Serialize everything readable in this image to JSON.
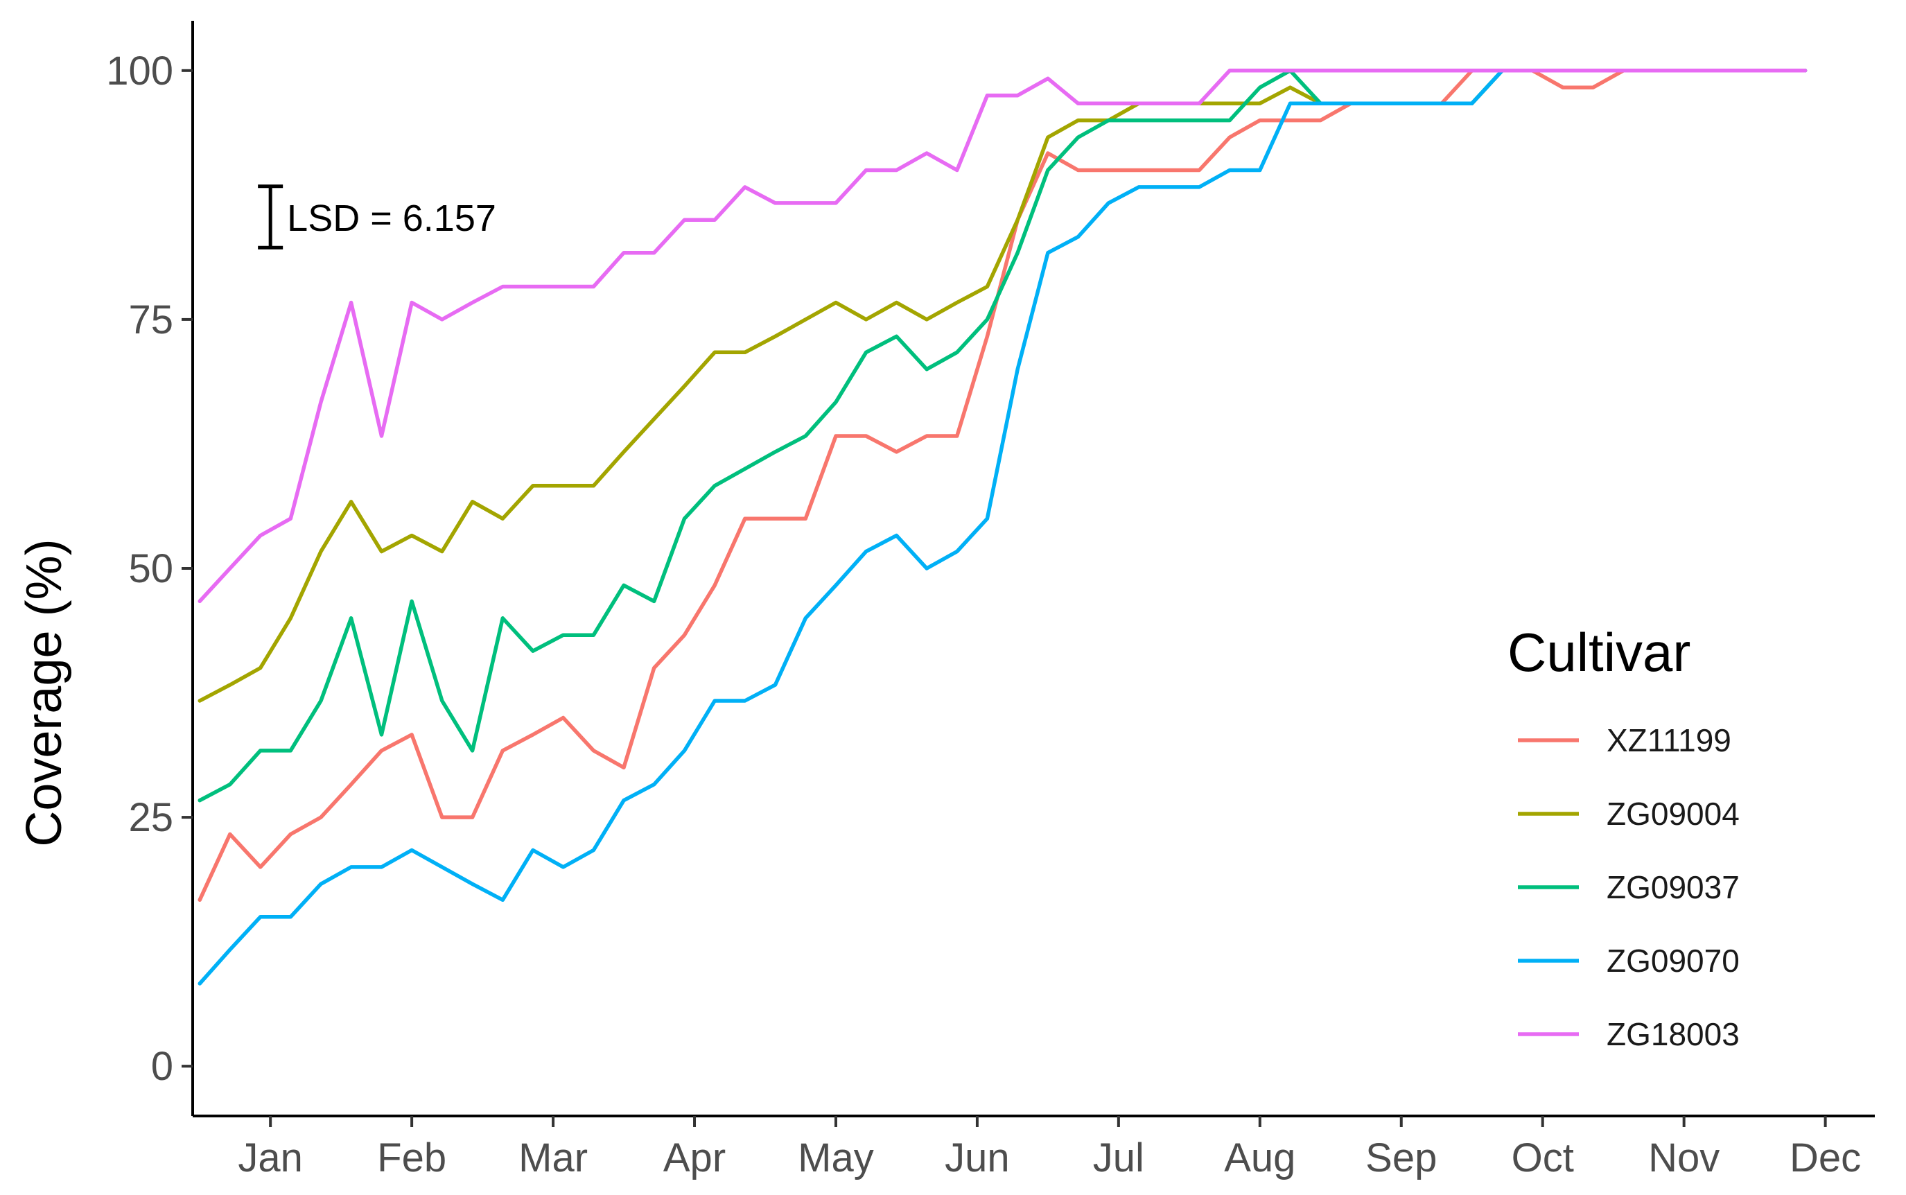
{
  "chart_data": {
    "type": "line",
    "ylabel": "Coverage (%)",
    "xlabel": "",
    "ylim": [
      -5,
      105
    ],
    "xlim": [
      0.45,
      12.35
    ],
    "yticks": [
      0,
      25,
      50,
      75,
      100
    ],
    "x_tick_labels": [
      "Jan",
      "Feb",
      "Mar",
      "Apr",
      "May",
      "Jun",
      "Jul",
      "Aug",
      "Sep",
      "Oct",
      "Nov",
      "Dec"
    ],
    "grid": false,
    "legend": {
      "title": "Cultivar",
      "position": "right"
    },
    "annotation": {
      "text": "LSD = 6.157",
      "x": 1.0,
      "y": 85.3,
      "half_range": 3.08
    },
    "x": [
      0.5,
      0.714,
      0.929,
      1.143,
      1.357,
      1.571,
      1.786,
      2.0,
      2.214,
      2.429,
      2.643,
      2.857,
      3.071,
      3.286,
      3.5,
      3.714,
      3.929,
      4.143,
      4.357,
      4.571,
      4.786,
      5.0,
      5.214,
      5.429,
      5.643,
      5.857,
      6.071,
      6.286,
      6.5,
      6.714,
      6.929,
      7.143,
      7.357,
      7.571,
      7.786,
      8.0,
      8.214,
      8.429,
      8.643,
      8.857,
      9.071,
      9.286,
      9.5,
      9.714,
      9.929,
      10.143,
      10.357,
      10.571,
      10.786,
      11.0,
      11.214,
      11.429,
      11.643,
      11.857
    ],
    "series": [
      {
        "name": "XZ11199",
        "color": "#F8766D",
        "values": [
          16.7,
          23.3,
          20.0,
          23.3,
          25.0,
          28.3,
          31.7,
          33.3,
          25.0,
          25.0,
          31.7,
          33.3,
          35.0,
          31.7,
          30.0,
          40.0,
          43.3,
          48.3,
          55.0,
          55.0,
          55.0,
          63.3,
          63.3,
          61.7,
          63.3,
          63.3,
          73.3,
          85.0,
          91.7,
          90.0,
          90.0,
          90.0,
          90.0,
          90.0,
          93.3,
          95.0,
          95.0,
          95.0,
          96.7,
          96.7,
          96.7,
          96.7,
          100,
          100,
          100,
          98.3,
          98.3,
          100,
          100,
          100,
          100,
          100,
          100,
          100
        ]
      },
      {
        "name": "ZG09004",
        "color": "#A3A500",
        "values": [
          36.7,
          38.3,
          40.0,
          45.0,
          51.7,
          56.7,
          51.7,
          53.3,
          51.7,
          56.7,
          55.0,
          58.3,
          58.3,
          58.3,
          61.7,
          65.0,
          68.3,
          71.7,
          71.7,
          73.3,
          75.0,
          76.7,
          75.0,
          76.7,
          75.0,
          76.7,
          78.3,
          85.0,
          93.3,
          95.0,
          95.0,
          96.7,
          96.7,
          96.7,
          96.7,
          96.7,
          98.3,
          96.7,
          96.7,
          96.7,
          96.7,
          96.7,
          96.7,
          100,
          100,
          100,
          100,
          100,
          100,
          100,
          100,
          100,
          100,
          100
        ]
      },
      {
        "name": "ZG09037",
        "color": "#00BF7D",
        "values": [
          26.7,
          28.3,
          31.7,
          31.7,
          36.7,
          45.0,
          33.3,
          46.7,
          36.7,
          31.7,
          45.0,
          41.7,
          43.3,
          43.3,
          48.3,
          46.7,
          55.0,
          58.3,
          60.0,
          61.7,
          63.3,
          66.7,
          71.7,
          73.3,
          70.0,
          71.7,
          75.0,
          81.7,
          90.0,
          93.3,
          95.0,
          95.0,
          95.0,
          95.0,
          95.0,
          98.3,
          100,
          96.7,
          96.7,
          96.7,
          96.7,
          96.7,
          96.7,
          100,
          100,
          100,
          100,
          100,
          100,
          100,
          100,
          100,
          100,
          100
        ]
      },
      {
        "name": "ZG09070",
        "color": "#00B0F6",
        "values": [
          8.3,
          11.7,
          15.0,
          15.0,
          18.3,
          20.0,
          20.0,
          21.7,
          20.0,
          18.3,
          16.7,
          21.7,
          20.0,
          21.7,
          26.7,
          28.3,
          31.7,
          36.7,
          36.7,
          38.3,
          45.0,
          48.3,
          51.7,
          53.3,
          50.0,
          51.7,
          55.0,
          70.0,
          81.7,
          83.3,
          86.7,
          88.3,
          88.3,
          88.3,
          90.0,
          90.0,
          96.7,
          96.7,
          96.7,
          96.7,
          96.7,
          96.7,
          96.7,
          100,
          100,
          100,
          100,
          100,
          100,
          100,
          100,
          100,
          100,
          100
        ]
      },
      {
        "name": "ZG18003",
        "color": "#E76BF3",
        "values": [
          46.7,
          50.0,
          53.3,
          55.0,
          66.7,
          76.7,
          63.3,
          76.7,
          75.0,
          76.7,
          78.3,
          78.3,
          78.3,
          78.3,
          81.7,
          81.7,
          85.0,
          85.0,
          88.3,
          86.7,
          86.7,
          86.7,
          90.0,
          90.0,
          91.7,
          90.0,
          97.5,
          97.5,
          99.2,
          96.7,
          96.7,
          96.7,
          96.7,
          96.7,
          100,
          100,
          100,
          100,
          100,
          100,
          100,
          100,
          100,
          100,
          100,
          100,
          100,
          100,
          100,
          100,
          100,
          100,
          100,
          100
        ]
      }
    ]
  }
}
